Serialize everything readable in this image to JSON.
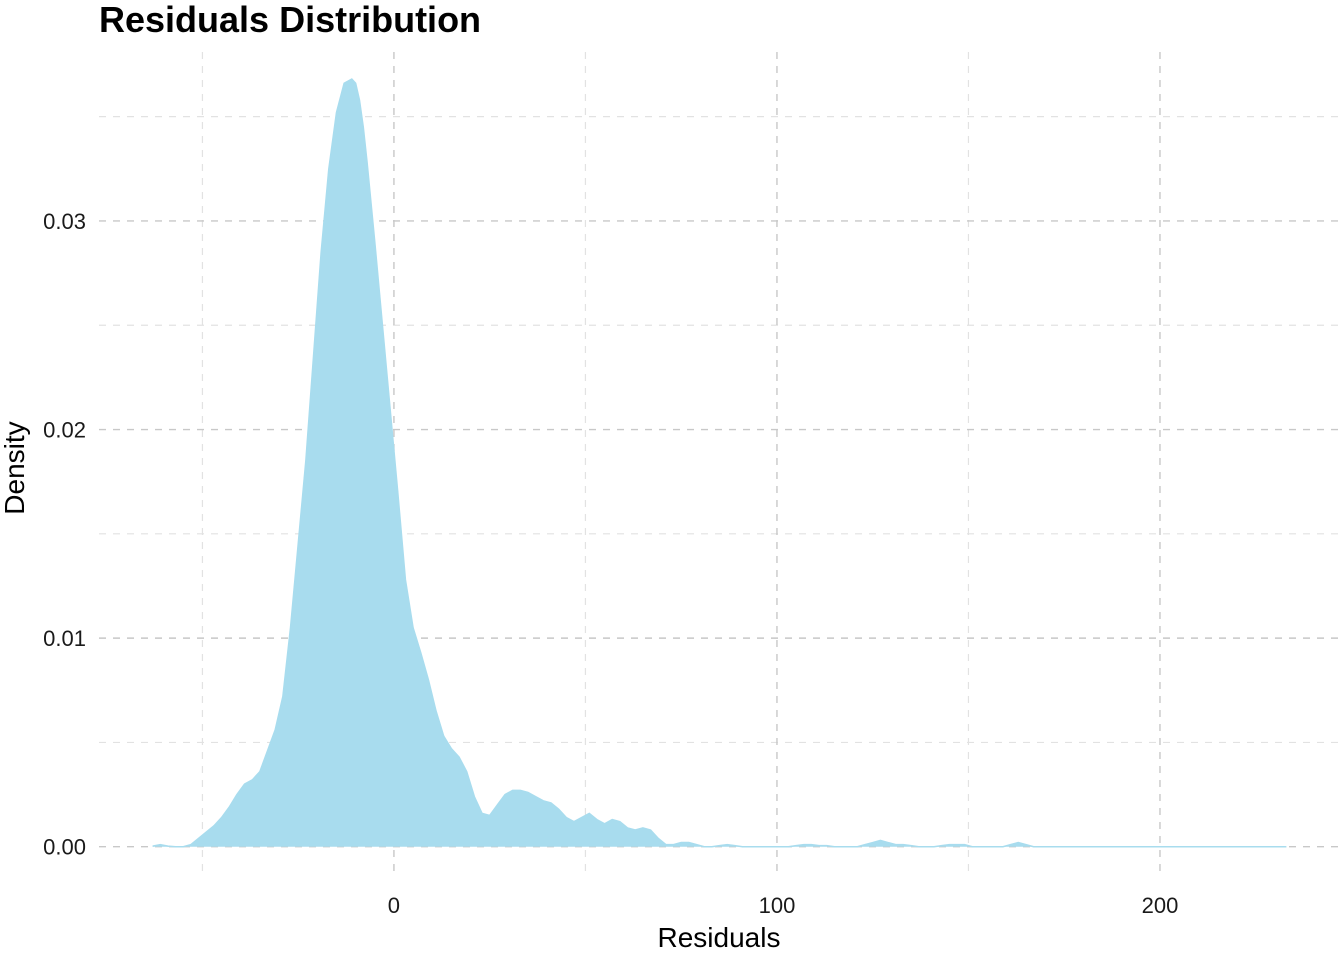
{
  "chart_data": {
    "type": "area",
    "title": "Residuals Distribution",
    "xlabel": "Residuals",
    "ylabel": "Density",
    "xlim": [
      -77,
      247
    ],
    "ylim": [
      -0.0015,
      0.0381
    ],
    "x_ticks": [
      0,
      100,
      200
    ],
    "x_tick_labels": [
      "0",
      "100",
      "200"
    ],
    "x_minor_ticks": [
      -50,
      50,
      150
    ],
    "y_ticks": [
      0.0,
      0.01,
      0.02,
      0.03
    ],
    "y_tick_labels": [
      "0.00",
      "0.01",
      "0.02",
      "0.03"
    ],
    "y_minor_ticks": [
      0.005,
      0.015,
      0.025,
      0.035
    ],
    "grid": true,
    "legend": "none",
    "fill_color": "#a8dcee",
    "line_color": "#a8dcee",
    "series": [
      {
        "x": [
          -63,
          -61,
          -59,
          -57,
          -55,
          -53,
          -51,
          -49,
          -47,
          -45,
          -43,
          -41,
          -39,
          -37,
          -35,
          -33,
          -31,
          -29,
          -27,
          -25,
          -23,
          -21,
          -19,
          -17,
          -15,
          -13,
          -11,
          -10,
          -9,
          -8,
          -7,
          -5,
          -3,
          -1,
          1,
          3,
          5,
          7,
          9,
          11,
          13,
          15,
          17,
          19,
          21,
          23,
          25,
          27,
          29,
          31,
          33,
          35,
          37,
          39,
          41,
          43,
          45,
          47,
          49,
          51,
          53,
          55,
          57,
          59,
          61,
          63,
          65,
          67,
          69,
          71,
          73,
          75,
          77,
          79,
          81,
          83,
          85,
          87,
          89,
          91,
          93,
          95,
          97,
          99,
          101,
          103,
          105,
          107,
          109,
          111,
          113,
          115,
          117,
          119,
          121,
          123,
          125,
          127,
          129,
          131,
          133,
          135,
          137,
          139,
          141,
          143,
          145,
          147,
          149,
          151,
          153,
          155,
          157,
          159,
          161,
          163,
          165,
          167,
          169,
          171,
          173,
          175,
          177,
          179,
          181,
          183,
          185,
          187,
          189,
          191,
          193,
          195,
          197,
          199,
          201,
          203,
          205,
          207,
          209,
          211,
          213,
          215,
          217,
          219,
          221,
          223,
          225,
          227,
          229,
          231,
          233
        ],
        "y": [
          3e-05,
          0.0001,
          3e-05,
          0.0,
          0.0,
          0.0001,
          0.0004,
          0.0007,
          0.001,
          0.0014,
          0.0019,
          0.0025,
          0.003,
          0.0032,
          0.0036,
          0.0046,
          0.0056,
          0.0072,
          0.0105,
          0.0145,
          0.0185,
          0.0235,
          0.0285,
          0.0325,
          0.0352,
          0.0366,
          0.0368,
          0.0366,
          0.0358,
          0.0345,
          0.0328,
          0.029,
          0.025,
          0.021,
          0.017,
          0.0128,
          0.0105,
          0.0093,
          0.008,
          0.0065,
          0.0053,
          0.0047,
          0.0043,
          0.0036,
          0.0024,
          0.0016,
          0.0015,
          0.002,
          0.0025,
          0.0027,
          0.0027,
          0.0026,
          0.0024,
          0.0022,
          0.0021,
          0.0018,
          0.0014,
          0.0012,
          0.0014,
          0.0016,
          0.0013,
          0.0011,
          0.0013,
          0.0012,
          0.0009,
          0.0008,
          0.0009,
          0.0008,
          0.0004,
          0.0001,
          0.0001,
          0.0002,
          0.0002,
          0.0001,
          0.0,
          0.0,
          5e-05,
          0.0001,
          5e-05,
          0.0,
          0.0,
          0.0,
          0.0,
          0.0,
          0.0,
          0.0,
          5e-05,
          0.0001,
          0.0001,
          5e-05,
          5e-05,
          0.0,
          0.0,
          0.0,
          0.0,
          0.0001,
          0.0002,
          0.0003,
          0.0002,
          0.0001,
          0.0001,
          5e-05,
          0.0,
          0.0,
          0.0,
          5e-05,
          0.0001,
          0.0001,
          0.0001,
          0.0,
          0.0,
          0.0,
          0.0,
          0.0,
          0.0001,
          0.0002,
          0.0001,
          0.0,
          0.0,
          0.0,
          0.0,
          0.0,
          0.0,
          0.0,
          0.0,
          0.0,
          0.0,
          0.0,
          0.0,
          0.0,
          0.0,
          0.0,
          0.0,
          0.0,
          0.0,
          0.0,
          0.0,
          0.0,
          0.0,
          0.0,
          0.0,
          0.0,
          0.0,
          0.0,
          0.0,
          0.0,
          0.0,
          0.0,
          0.0,
          0.0,
          0.0
        ]
      }
    ]
  }
}
